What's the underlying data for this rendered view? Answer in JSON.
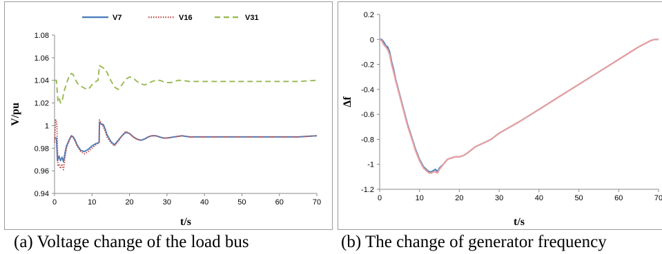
{
  "chart_data": [
    {
      "type": "line",
      "caption": "(a) Voltage change of the load bus",
      "xlabel": "t/s",
      "ylabel": "V/pu",
      "xlim": [
        0,
        70
      ],
      "ylim": [
        0.94,
        1.08
      ],
      "xticks": [
        "0",
        "10",
        "20",
        "30",
        "40",
        "50",
        "60",
        "70"
      ],
      "yticks": [
        "0.94",
        "0.96",
        "0.98",
        "1",
        "1.02",
        "1.04",
        "1.06",
        "1.08"
      ],
      "grid": false,
      "legend_position": "top",
      "series": [
        {
          "name": "V7",
          "color": "#4f81bd",
          "style": "solid",
          "x": [
            0,
            0.5,
            0.8,
            1.2,
            1.6,
            2,
            2.4,
            2.8,
            3.2,
            3.6,
            4,
            4.5,
            5,
            5.5,
            6,
            7,
            8,
            9,
            10,
            11,
            11.9,
            12,
            12.5,
            13,
            13.5,
            14,
            15,
            16,
            17,
            18,
            19,
            20,
            21,
            22,
            23,
            24,
            25,
            26,
            27,
            28,
            29,
            30,
            32,
            34,
            36,
            38,
            40,
            45,
            50,
            55,
            60,
            65,
            70
          ],
          "y": [
            0.989,
            0.989,
            0.969,
            0.973,
            0.969,
            0.972,
            0.968,
            0.976,
            0.982,
            0.985,
            0.988,
            0.991,
            0.99,
            0.987,
            0.983,
            0.978,
            0.977,
            0.979,
            0.982,
            0.984,
            0.985,
            1.003,
            1.001,
            1.001,
            0.997,
            0.992,
            0.986,
            0.983,
            0.987,
            0.991,
            0.994,
            0.993,
            0.99,
            0.988,
            0.987,
            0.988,
            0.99,
            0.991,
            0.991,
            0.99,
            0.989,
            0.989,
            0.99,
            0.991,
            0.99,
            0.99,
            0.99,
            0.99,
            0.99,
            0.99,
            0.99,
            0.99,
            0.991
          ]
        },
        {
          "name": "V16",
          "color": "#c0504d",
          "style": "dotted",
          "x": [
            0,
            0.3,
            0.6,
            0.9,
            1.2,
            1.6,
            2,
            2.4,
            2.8,
            3.2,
            3.6,
            4,
            4.5,
            5,
            5.5,
            6,
            7,
            8,
            9,
            10,
            11,
            11.9,
            12,
            12.5,
            13,
            13.5,
            14,
            15,
            16,
            17,
            18,
            19,
            20,
            21,
            22,
            23,
            24,
            25,
            26,
            27,
            28,
            29,
            30,
            32,
            34,
            36,
            38,
            40,
            45,
            50,
            55,
            60,
            65,
            70
          ],
          "y": [
            0.985,
            1.005,
            1.002,
            0.964,
            0.966,
            0.962,
            0.966,
            0.961,
            0.972,
            0.98,
            0.984,
            0.987,
            0.991,
            0.989,
            0.986,
            0.982,
            0.977,
            0.975,
            0.977,
            0.98,
            0.983,
            0.985,
            1.005,
            1.002,
            0.999,
            0.995,
            0.99,
            0.985,
            0.982,
            0.986,
            0.991,
            0.995,
            0.993,
            0.99,
            0.988,
            0.987,
            0.988,
            0.99,
            0.991,
            0.991,
            0.99,
            0.989,
            0.989,
            0.99,
            0.991,
            0.99,
            0.99,
            0.99,
            0.99,
            0.99,
            0.99,
            0.99,
            0.99,
            0.991
          ]
        },
        {
          "name": "V31",
          "color": "#9bbb59",
          "style": "dashed",
          "x": [
            0,
            0.5,
            0.9,
            1.2,
            1.6,
            2,
            2.5,
            3,
            3.5,
            4,
            4.5,
            5,
            5.5,
            6,
            6.5,
            7,
            8,
            9,
            10,
            11,
            11.6,
            12,
            12.5,
            13,
            13.5,
            14,
            15,
            16,
            17,
            18,
            19,
            20,
            21,
            22,
            23,
            24,
            25,
            26,
            27,
            28,
            29,
            30,
            31,
            32,
            33,
            34,
            36,
            38,
            40,
            45,
            50,
            55,
            60,
            65,
            70
          ],
          "y": [
            1.04,
            1.04,
            1.022,
            1.025,
            1.02,
            1.021,
            1.03,
            1.035,
            1.04,
            1.045,
            1.046,
            1.045,
            1.041,
            1.038,
            1.036,
            1.035,
            1.033,
            1.032,
            1.036,
            1.039,
            1.04,
            1.053,
            1.052,
            1.051,
            1.05,
            1.047,
            1.04,
            1.034,
            1.032,
            1.036,
            1.041,
            1.043,
            1.042,
            1.039,
            1.037,
            1.036,
            1.037,
            1.039,
            1.04,
            1.04,
            1.039,
            1.038,
            1.038,
            1.039,
            1.04,
            1.04,
            1.039,
            1.039,
            1.039,
            1.039,
            1.039,
            1.039,
            1.039,
            1.039,
            1.04
          ]
        }
      ]
    },
    {
      "type": "line",
      "caption": "(b) The change of generator frequency",
      "xlabel": "t/s",
      "ylabel": "Δf",
      "xlim": [
        0,
        70
      ],
      "ylim": [
        -1.2,
        0.2
      ],
      "xticks": [
        "0",
        "10",
        "20",
        "30",
        "40",
        "50",
        "60",
        "70"
      ],
      "yticks": [
        "-1.2",
        "-1",
        "-0.8",
        "-0.6",
        "-0.4",
        "-0.2",
        "0",
        "0.2"
      ],
      "grid": false,
      "series": [
        {
          "color": "#4f81bd",
          "style": "solid",
          "x": [
            0,
            0.5,
            1,
            1.5,
            2,
            2.5,
            3,
            3.5,
            4,
            4.5,
            5,
            6,
            7,
            8,
            9,
            10,
            11,
            12,
            12.5,
            13,
            13.5,
            14,
            14.5,
            15,
            16,
            17,
            18,
            19,
            20,
            21,
            22,
            24,
            26,
            28,
            30,
            35,
            40,
            45,
            50,
            55,
            60,
            65,
            68,
            69,
            70
          ],
          "y": [
            0.0,
            0.0,
            -0.02,
            -0.05,
            -0.06,
            -0.1,
            -0.18,
            -0.24,
            -0.32,
            -0.38,
            -0.44,
            -0.56,
            -0.68,
            -0.78,
            -0.88,
            -0.96,
            -1.02,
            -1.05,
            -1.06,
            -1.06,
            -1.05,
            -1.04,
            -1.06,
            -1.03,
            -1.0,
            -0.96,
            -0.95,
            -0.94,
            -0.94,
            -0.93,
            -0.91,
            -0.86,
            -0.83,
            -0.8,
            -0.75,
            -0.66,
            -0.56,
            -0.46,
            -0.36,
            -0.26,
            -0.16,
            -0.06,
            -0.01,
            0.0,
            0.0
          ]
        },
        {
          "color": "#e8a0a0",
          "style": "solid",
          "x": [
            0,
            0.5,
            1,
            1.5,
            2,
            2.5,
            3,
            3.5,
            4,
            4.5,
            5,
            6,
            7,
            8,
            9,
            10,
            11,
            12,
            12.5,
            13,
            13.5,
            14,
            14.5,
            15,
            16,
            17,
            18,
            19,
            20,
            21,
            22,
            24,
            26,
            28,
            30,
            35,
            40,
            45,
            50,
            55,
            60,
            65,
            68,
            69,
            70
          ],
          "y": [
            0.0,
            -0.01,
            -0.04,
            -0.06,
            -0.08,
            -0.12,
            -0.2,
            -0.26,
            -0.33,
            -0.39,
            -0.45,
            -0.57,
            -0.69,
            -0.79,
            -0.89,
            -0.97,
            -1.03,
            -1.06,
            -1.07,
            -1.07,
            -1.06,
            -1.06,
            -1.07,
            -1.04,
            -1.0,
            -0.96,
            -0.95,
            -0.94,
            -0.94,
            -0.93,
            -0.91,
            -0.86,
            -0.83,
            -0.8,
            -0.75,
            -0.66,
            -0.56,
            -0.46,
            -0.36,
            -0.26,
            -0.16,
            -0.06,
            -0.01,
            0.0,
            0.0
          ]
        }
      ]
    }
  ]
}
